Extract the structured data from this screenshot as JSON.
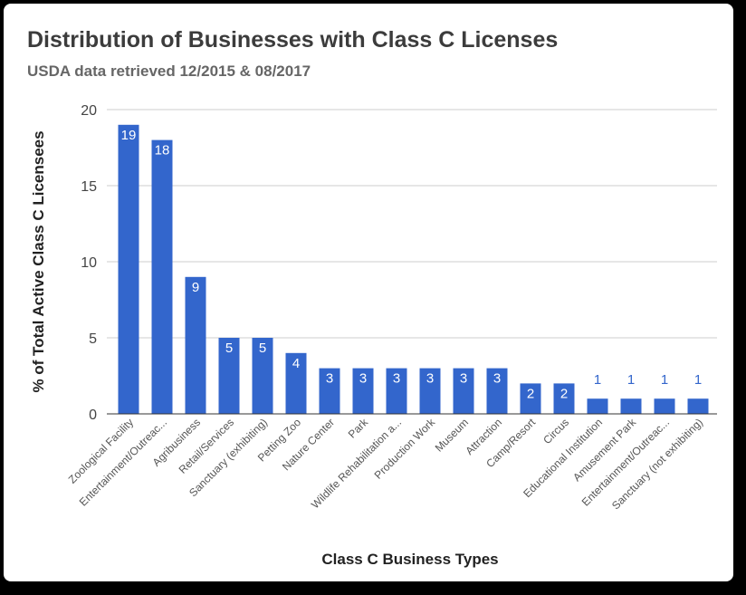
{
  "chart_data": {
    "type": "bar",
    "title": "Distribution of Businesses with Class C Licenses",
    "subtitle": "USDA data retrieved 12/2015 & 08/2017",
    "xlabel": "Class C Business Types",
    "ylabel": "% of Total Active Class C Licensees",
    "ylim": [
      0,
      20
    ],
    "yticks": [
      0,
      5,
      10,
      15,
      20
    ],
    "grid": true,
    "legend": "none",
    "bar_color": "#3366cc",
    "categories": [
      "Zoological Facility",
      "Entertainment/Outreac...",
      "Agribusiness",
      "Retail/Services",
      "Sanctuary (exhibiting)",
      "Petting Zoo",
      "Nature Center",
      "Park",
      "Wildlife Rehabilitation a...",
      "Production Work",
      "Museum",
      "Attraction",
      "Camp/Resort",
      "Circus",
      "Educational Institution",
      "Amusement Park",
      "Entertainment/Outreac...",
      "Sanctuary (not exhibiting)"
    ],
    "values": [
      19,
      18,
      9,
      5,
      5,
      4,
      3,
      3,
      3,
      3,
      3,
      3,
      2,
      2,
      1,
      1,
      1,
      1
    ],
    "data_labels": [
      "19",
      "18",
      "9",
      "5",
      "5",
      "4",
      "3",
      "3",
      "3",
      "3",
      "3",
      "3",
      "2",
      "2",
      "1",
      "1",
      "1",
      "1"
    ]
  }
}
